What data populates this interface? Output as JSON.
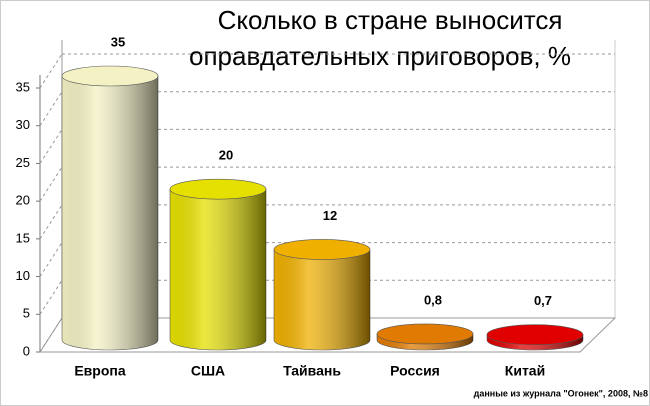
{
  "chart_data": {
    "type": "bar3d",
    "title": "Сколько в стране выносится оправдательных приговоров, %",
    "categories": [
      "Европа",
      "США",
      "Тайвань",
      "Россия",
      "Китай"
    ],
    "values": [
      35,
      20,
      12,
      0.8,
      0.7
    ],
    "value_labels": [
      "35",
      "20",
      "12",
      "0,8",
      "0,7"
    ],
    "colors": [
      "#f4f2c4",
      "#e6e000",
      "#f0b000",
      "#e07a00",
      "#e00000"
    ],
    "ylim": [
      0,
      35
    ],
    "yticks": [
      0,
      5,
      10,
      15,
      20,
      25,
      30,
      35
    ],
    "grid": true,
    "source": "данные из журнала \"Огонек\", 2008, №8"
  }
}
